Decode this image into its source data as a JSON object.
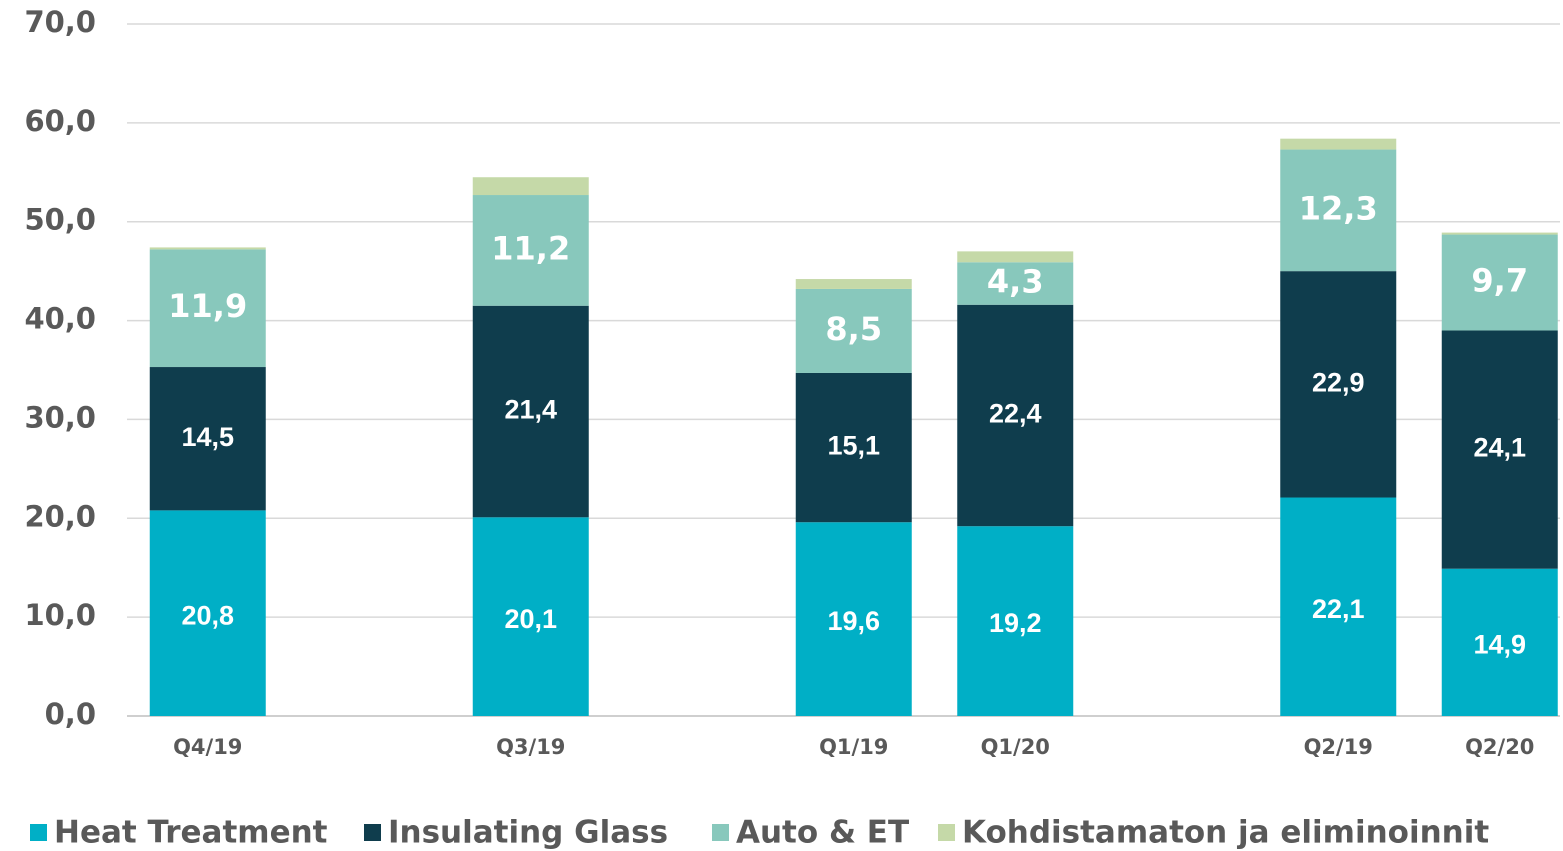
{
  "chart_data": {
    "type": "stacked_bar",
    "categories": [
      "Q4/19",
      null,
      "Q3/19",
      null,
      "Q1/19",
      "Q1/20",
      null,
      "Q2/19",
      "Q2/20"
    ],
    "series": [
      {
        "name": "Heat Treatment",
        "color": "#00afc6",
        "values": [
          20.8,
          null,
          20.1,
          null,
          19.6,
          19.2,
          null,
          22.1,
          14.9
        ],
        "value_labels": [
          "20,8",
          null,
          "20,1",
          null,
          "19,6",
          "19,2",
          null,
          "22,1",
          "14,9"
        ]
      },
      {
        "name": "Insulating Glass",
        "color": "#0f3d4d",
        "values": [
          14.5,
          null,
          21.4,
          null,
          15.1,
          22.4,
          null,
          22.9,
          24.1
        ],
        "value_labels": [
          "14,5",
          null,
          "21,4",
          null,
          "15,1",
          "22,4",
          null,
          "22,9",
          "24,1"
        ]
      },
      {
        "name": "Auto & ET",
        "color": "#88c8bc",
        "values": [
          11.9,
          null,
          11.2,
          null,
          8.5,
          4.3,
          null,
          12.3,
          9.7
        ],
        "value_labels": [
          "11,9",
          null,
          "11,2",
          null,
          "8,5",
          "4,3",
          null,
          "12,3",
          "9,7"
        ]
      },
      {
        "name": "Kohdistamaton ja eliminoinnit",
        "color": "#c5d9a8",
        "values": [
          0.2,
          null,
          1.8,
          null,
          1.0,
          1.1,
          null,
          1.1,
          0.2
        ]
      }
    ],
    "ylim": [
      0,
      70
    ],
    "yticks": [
      {
        "value": 0,
        "label": "0,0"
      },
      {
        "value": 10,
        "label": "10,0"
      },
      {
        "value": 20,
        "label": "20,0"
      },
      {
        "value": 30,
        "label": "30,0"
      },
      {
        "value": 40,
        "label": "40,0"
      },
      {
        "value": 50,
        "label": "50,0"
      },
      {
        "value": 60,
        "label": "60,0"
      },
      {
        "value": 70,
        "label": "70,0"
      }
    ],
    "grid": true,
    "legend": "bottom"
  }
}
